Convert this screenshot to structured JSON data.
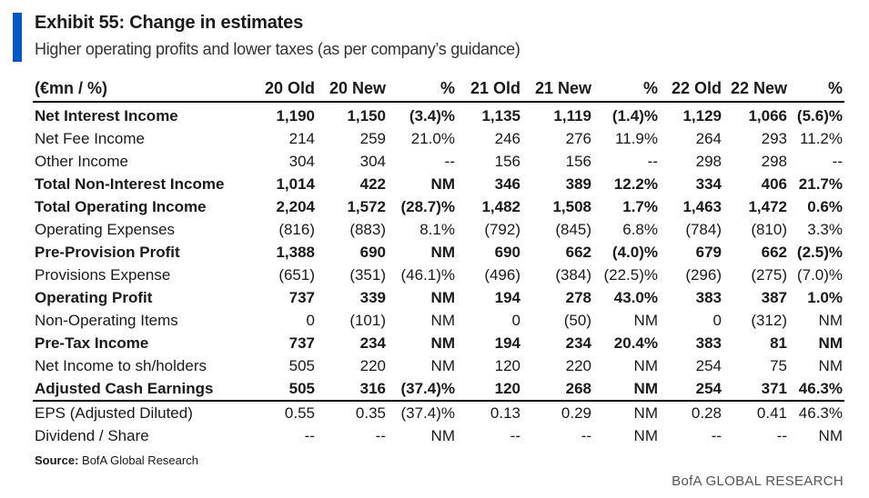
{
  "header": {
    "title": "Exhibit 55: Change in estimates",
    "subtitle": "Higher operating profits and lower taxes (as per company’s guidance)"
  },
  "colors": {
    "accent": "#0a55c4"
  },
  "table": {
    "columns": [
      "(€mn / %)",
      "20 Old",
      "20 New",
      "%",
      "21 Old",
      "21 New",
      "%",
      "22 Old",
      "22 New",
      "%"
    ],
    "rows": [
      {
        "label": "Net Interest Income",
        "bold": true,
        "cells": [
          "1,190",
          "1,150",
          "(3.4)%",
          "1,135",
          "1,119",
          "(1.4)%",
          "1,129",
          "1,066",
          "(5.6)%"
        ]
      },
      {
        "label": "Net Fee Income",
        "bold": false,
        "cells": [
          "214",
          "259",
          "21.0%",
          "246",
          "276",
          "11.9%",
          "264",
          "293",
          "11.2%"
        ]
      },
      {
        "label": "Other Income",
        "bold": false,
        "cells": [
          "304",
          "304",
          "--",
          "156",
          "156",
          "--",
          "298",
          "298",
          "--"
        ]
      },
      {
        "label": "Total Non-Interest Income",
        "bold": true,
        "cells": [
          "1,014",
          "422",
          "NM",
          "346",
          "389",
          "12.2%",
          "334",
          "406",
          "21.7%"
        ]
      },
      {
        "label": "Total Operating Income",
        "bold": true,
        "cells": [
          "2,204",
          "1,572",
          "(28.7)%",
          "1,482",
          "1,508",
          "1.7%",
          "1,463",
          "1,472",
          "0.6%"
        ]
      },
      {
        "label": "Operating Expenses",
        "bold": false,
        "cells": [
          "(816)",
          "(883)",
          "8.1%",
          "(792)",
          "(845)",
          "6.8%",
          "(784)",
          "(810)",
          "3.3%"
        ]
      },
      {
        "label": "Pre-Provision Profit",
        "bold": true,
        "cells": [
          "1,388",
          "690",
          "NM",
          "690",
          "662",
          "(4.0)%",
          "679",
          "662",
          "(2.5)%"
        ]
      },
      {
        "label": "Provisions Expense",
        "bold": false,
        "cells": [
          "(651)",
          "(351)",
          "(46.1)%",
          "(496)",
          "(384)",
          "(22.5)%",
          "(296)",
          "(275)",
          "(7.0)%"
        ]
      },
      {
        "label": "Operating Profit",
        "bold": true,
        "cells": [
          "737",
          "339",
          "NM",
          "194",
          "278",
          "43.0%",
          "383",
          "387",
          "1.0%"
        ]
      },
      {
        "label": "Non-Operating Items",
        "bold": false,
        "cells": [
          "0",
          "(101)",
          "NM",
          "0",
          "(50)",
          "NM",
          "0",
          "(312)",
          "NM"
        ]
      },
      {
        "label": "Pre-Tax Income",
        "bold": true,
        "cells": [
          "737",
          "234",
          "NM",
          "194",
          "234",
          "20.4%",
          "383",
          "81",
          "NM"
        ]
      },
      {
        "label": "Net Income to sh/holders",
        "bold": false,
        "cells": [
          "505",
          "220",
          "NM",
          "120",
          "220",
          "NM",
          "254",
          "75",
          "NM"
        ]
      },
      {
        "label": "Adjusted Cash Earnings",
        "bold": true,
        "cells": [
          "505",
          "316",
          "(37.4)%",
          "120",
          "268",
          "NM",
          "254",
          "371",
          "46.3%"
        ]
      },
      {
        "label": "EPS (Adjusted Diluted)",
        "bold": false,
        "cells": [
          "0.55",
          "0.35",
          "(37.4)%",
          "0.13",
          "0.29",
          "NM",
          "0.28",
          "0.41",
          "46.3%"
        ]
      },
      {
        "label": "Dividend / Share",
        "bold": false,
        "cells": [
          "--",
          "--",
          "NM",
          "--",
          "--",
          "NM",
          "--",
          "--",
          "NM"
        ]
      }
    ]
  },
  "footer": {
    "source_label": "Source:",
    "source_text": "BofA Global Research",
    "brand": "BofA GLOBAL RESEARCH"
  }
}
